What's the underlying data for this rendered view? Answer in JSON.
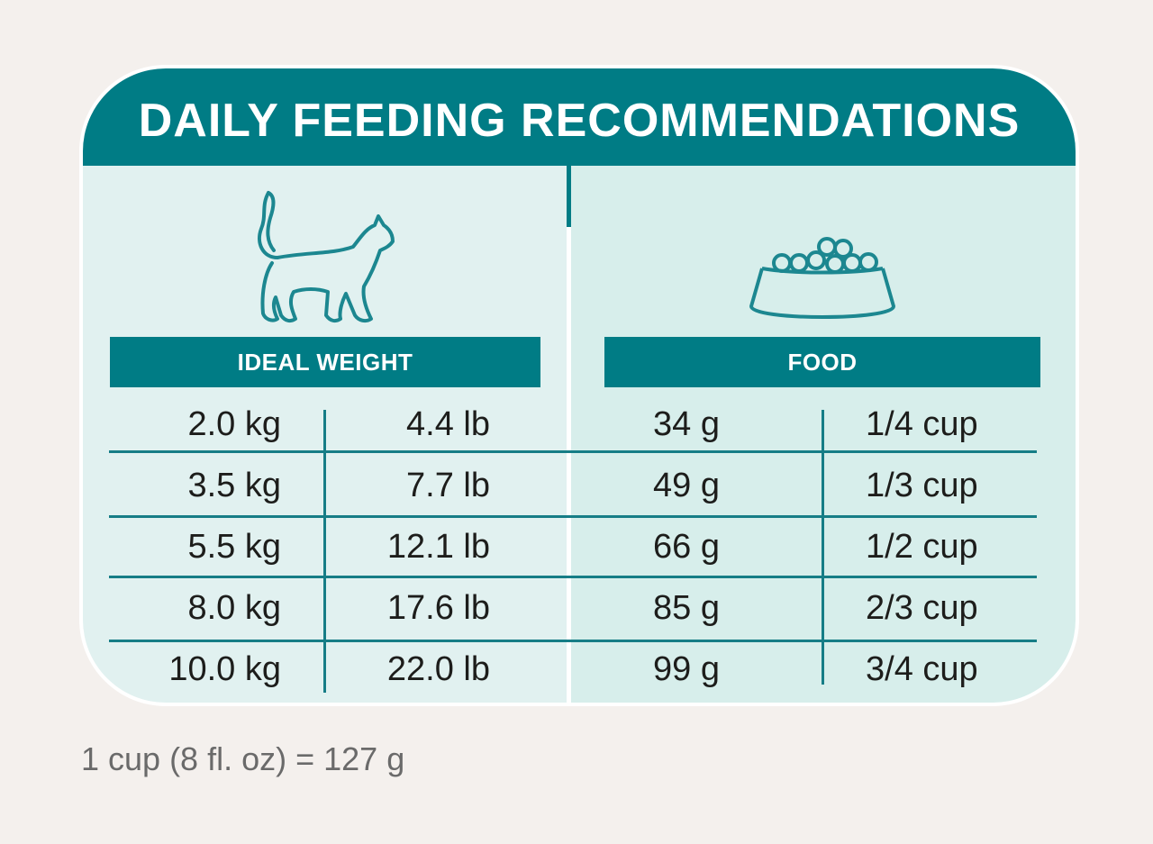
{
  "title": "DAILY FEEDING RECOMMENDATIONS",
  "icons": {
    "weight_icon": "cat-icon",
    "food_icon": "food-bowl-icon"
  },
  "columns": {
    "weight_header": "IDEAL WEIGHT",
    "food_header": "FOOD"
  },
  "rows": [
    {
      "kg": "2.0 kg",
      "lb": "4.4 lb",
      "grams": "34 g",
      "cups": "1/4 cup"
    },
    {
      "kg": "3.5 kg",
      "lb": "7.7 lb",
      "grams": "49 g",
      "cups": "1/3 cup"
    },
    {
      "kg": "5.5 kg",
      "lb": "12.1 lb",
      "grams": "66 g",
      "cups": "1/2 cup"
    },
    {
      "kg": "8.0 kg",
      "lb": "17.6 lb",
      "grams": "85 g",
      "cups": "2/3 cup"
    },
    {
      "kg": "10.0 kg",
      "lb": "22.0 lb",
      "grams": "99 g",
      "cups": "3/4 cup"
    }
  ],
  "footnote": "1 cup (8 fl. oz)  = 127 g",
  "colors": {
    "teal": "#007c85",
    "left_panel": "#e1f1f0",
    "right_panel": "#d7eeeb",
    "background": "#f4f0ed"
  }
}
